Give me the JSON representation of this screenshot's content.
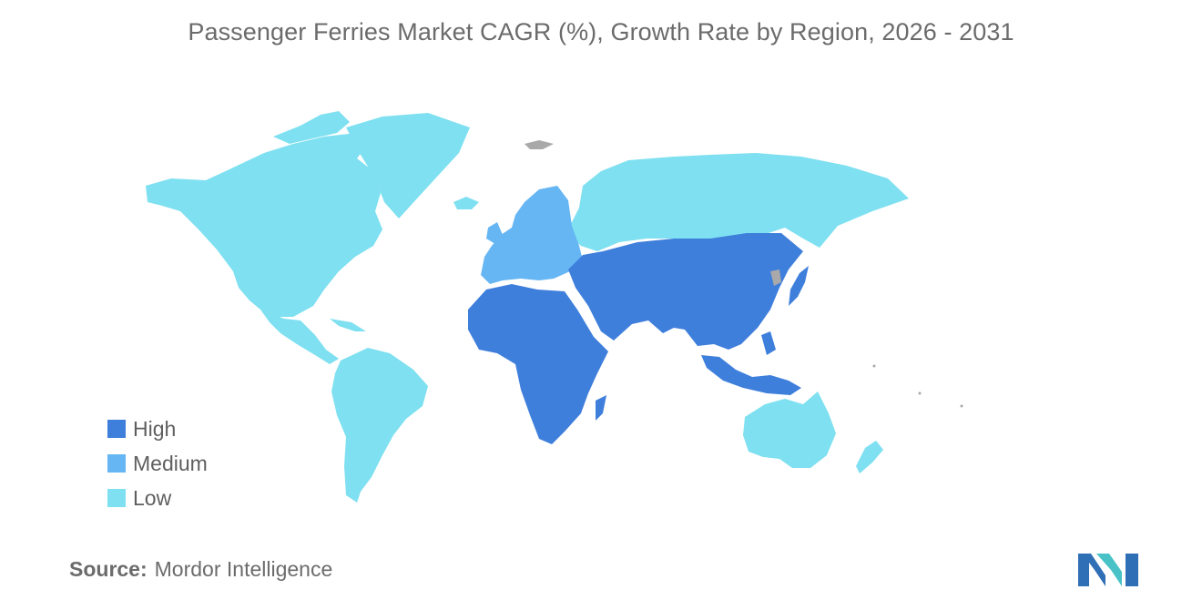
{
  "title": "Passenger Ferries Market CAGR (%), Growth Rate by Region, 2026 - 2031",
  "legend": [
    {
      "label": "High",
      "color": "#3f7fdc"
    },
    {
      "label": "Medium",
      "color": "#66b6f4"
    },
    {
      "label": "Low",
      "color": "#7ee0f0"
    }
  ],
  "no_data_color": "#a9a9a9",
  "source": {
    "label": "Source:",
    "value": "Mordor Intelligence"
  },
  "logo": {
    "icon": "mordor-intelligence-logo",
    "colors": [
      "#2f6fb5",
      "#49c2c7"
    ]
  }
}
